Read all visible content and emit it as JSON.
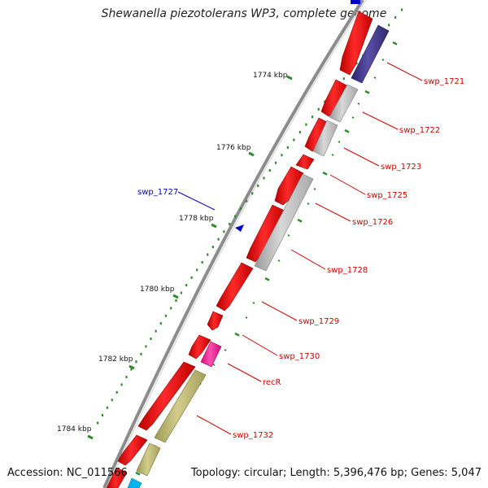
{
  "title": "Shewanella piezotolerans WP3, complete genome",
  "accession": "Accession: NC_011566",
  "topology": "Topology: circular; Length: 5,396,476 bp; Genes: 5,047",
  "colors": {
    "backbone": "#8c8c8c",
    "tick": "#2e8b2e",
    "forward_gene": "#ff1a1a",
    "label_forward": "#d40000",
    "label_reverse": "#0000cc"
  },
  "kbp_labels": [
    {
      "kbp": 1774,
      "text": "1774 kbp"
    },
    {
      "kbp": 1776,
      "text": "1776 kbp"
    },
    {
      "kbp": 1778,
      "text": "1778 kbp"
    },
    {
      "kbp": 1780,
      "text": "1780 kbp"
    },
    {
      "kbp": 1782,
      "text": "1782 kbp"
    },
    {
      "kbp": 1784,
      "text": "1784 kbp"
    }
  ],
  "genes": [
    {
      "name": "swp_1721",
      "strand": "outer",
      "color": "#483d8b"
    },
    {
      "name": "swp_1722",
      "strand": "outer",
      "color": "#c0c0c0"
    },
    {
      "name": "swp_1723",
      "strand": "outer",
      "color": "#c0c0c0"
    },
    {
      "name": "swp_1725",
      "strand": "inner",
      "color": "#ff1a1a"
    },
    {
      "name": "swp_1726",
      "strand": "outer",
      "color": "#c0c0c0"
    },
    {
      "name": "swp_1727",
      "strand": "reverse",
      "color": "#0000cc"
    },
    {
      "name": "swp_1728",
      "strand": "outer",
      "color": "#c0c0c0"
    },
    {
      "name": "swp_1729",
      "strand": "inner",
      "color": "#ff1a1a"
    },
    {
      "name": "swp_1730",
      "strand": "inner",
      "color": "#ff1a1a"
    },
    {
      "name": "recR",
      "strand": "outer",
      "color": "#ff1493"
    },
    {
      "name": "swp_1732",
      "strand": "outer",
      "color": "#bdb76b"
    }
  ]
}
